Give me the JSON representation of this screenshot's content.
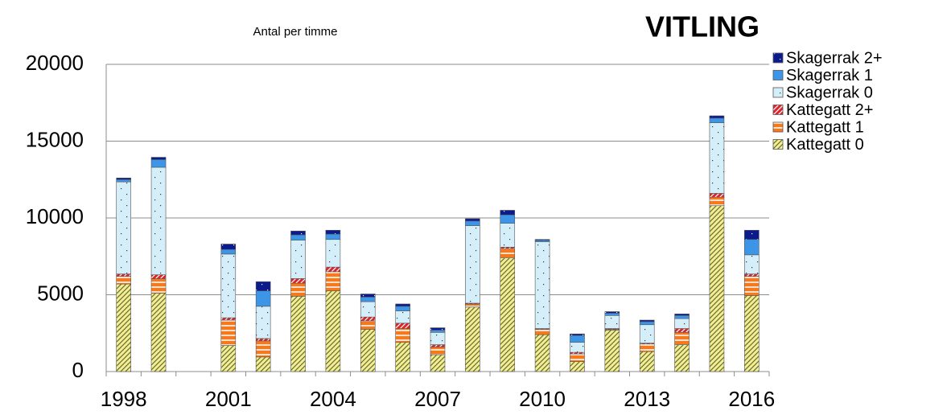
{
  "chart_data": {
    "type": "stacked_bar",
    "title": "VITLING",
    "subtitle": "Antal per timme",
    "categories": [
      "1998",
      null,
      null,
      "2001",
      null,
      null,
      "2004",
      null,
      null,
      "2007",
      null,
      null,
      "2010",
      null,
      null,
      "2013",
      null,
      null,
      "2016"
    ],
    "series": [
      {
        "name": "Kattegatt 0",
        "color": "#f2ee94",
        "values": [
          5700,
          5100,
          null,
          1700,
          950,
          4900,
          5250,
          2750,
          1900,
          1100,
          4200,
          7400,
          2400,
          650,
          2700,
          1300,
          1750,
          10800,
          4950
        ]
      },
      {
        "name": "Kattegatt 1",
        "color": "#f47a20",
        "values": [
          500,
          950,
          null,
          1650,
          1050,
          850,
          1250,
          550,
          900,
          500,
          200,
          600,
          350,
          500,
          50,
          500,
          800,
          550,
          1250
        ]
      },
      {
        "name": "Kattegatt 2+",
        "color": "#d9262c",
        "values": [
          150,
          250,
          null,
          150,
          150,
          300,
          300,
          250,
          350,
          150,
          50,
          100,
          50,
          100,
          50,
          50,
          250,
          250,
          150
        ]
      },
      {
        "name": "Skagerrak 0",
        "color": "#d4eefa",
        "values": [
          6000,
          7000,
          null,
          4150,
          2100,
          2500,
          1800,
          1000,
          800,
          800,
          5050,
          1550,
          5650,
          650,
          850,
          1200,
          650,
          4600,
          1250
        ]
      },
      {
        "name": "Skagerrak 1",
        "color": "#3d95e8",
        "values": [
          150,
          500,
          null,
          300,
          1000,
          350,
          350,
          300,
          300,
          150,
          300,
          550,
          100,
          450,
          150,
          200,
          200,
          300,
          1000
        ]
      },
      {
        "name": "Skagerrak 2+",
        "color": "#0b1a8c",
        "values": [
          100,
          150,
          null,
          350,
          600,
          250,
          250,
          200,
          150,
          150,
          150,
          300,
          50,
          100,
          100,
          100,
          100,
          150,
          600
        ]
      }
    ],
    "ylim": [
      0,
      20000
    ],
    "yticks": [
      0,
      5000,
      10000,
      15000,
      20000
    ],
    "grid": true
  }
}
